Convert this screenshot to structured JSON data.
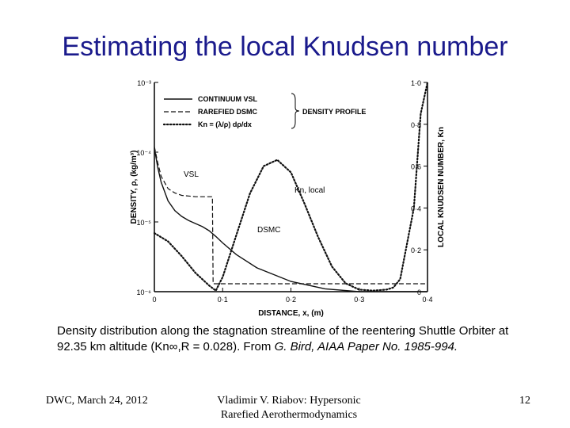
{
  "slide": {
    "title": "Estimating the local Knudsen number",
    "caption_main": "Density distribution along the stagnation streamline of the reentering Shuttle Orbiter at 92.35 km altitude (Kn∞,R = 0.028). From ",
    "caption_source": "G. Bird, AIAA Paper No. 1985-994.",
    "footer_left": "DWC, March 24, 2012",
    "footer_center_line1": "Vladimir V. Riabov: Hypersonic",
    "footer_center_line2": "Rarefied Aerothermodynamics",
    "page_number": "12"
  },
  "chart_data": {
    "type": "line",
    "xlabel": "DISTANCE,  x,  (m)",
    "ylabel_left": "DENSITY,  ρ,  (kg/m³)",
    "ylabel_right": "LOCAL  KNUDSEN  NUMBER,  Kn",
    "x_ticks": [
      "0",
      "0·1",
      "0·2",
      "0·3",
      "0·4"
    ],
    "x_tick_values": [
      0,
      0.1,
      0.2,
      0.3,
      0.4
    ],
    "xlim": [
      0,
      0.4
    ],
    "y_left_scale": "log",
    "y_left_ticks": [
      "10⁻³",
      "10⁻⁴",
      "10⁻⁵",
      "10⁻⁶"
    ],
    "y_left_tick_values": [
      0.001,
      0.0001,
      1e-05,
      1e-06
    ],
    "y_left_lim": [
      1e-06,
      0.001
    ],
    "y_right_ticks": [
      "0",
      "0·2",
      "0·4",
      "0·6",
      "0·8",
      "1·0"
    ],
    "y_right_tick_values": [
      0,
      0.2,
      0.4,
      0.6,
      0.8,
      1.0
    ],
    "y_right_lim": [
      0,
      1.0
    ],
    "legend": {
      "placement": "top-left",
      "entries": [
        "CONTINUUM  VSL",
        "RAREFIED  DSMC",
        "Kn = (λ/ρ) dρ/dx"
      ],
      "group_label": "DENSITY  PROFILE"
    },
    "annotations": [
      "VSL",
      "Kn, local",
      "DSMC"
    ],
    "series": [
      {
        "name": "CONTINUUM  VSL",
        "axis": "left",
        "style": "solid",
        "x": [
          0,
          0.005,
          0.01,
          0.02,
          0.03,
          0.04,
          0.05,
          0.06,
          0.07,
          0.08,
          0.09,
          0.1,
          0.12,
          0.15,
          0.2,
          0.25,
          0.3,
          0.35,
          0.4
        ],
        "y": [
          0.000115,
          6e-05,
          3.7e-05,
          2e-05,
          1.45e-05,
          1.2e-05,
          1.05e-05,
          9.5e-06,
          8.6e-06,
          7.5e-06,
          6.2e-06,
          5e-06,
          3.4e-06,
          2.2e-06,
          1.4e-06,
          1.1e-06,
          1e-06,
          1e-06,
          1e-06
        ]
      },
      {
        "name": "RAREFIED  DSMC",
        "axis": "left",
        "style": "dashed",
        "x": [
          0,
          0.005,
          0.01,
          0.02,
          0.03,
          0.04,
          0.05,
          0.06,
          0.07,
          0.08,
          0.085,
          0.086,
          0.1,
          0.2,
          0.3,
          0.35,
          0.4
        ],
        "y": [
          0.00012,
          7e-05,
          4.5e-05,
          3e-05,
          2.6e-05,
          2.4e-05,
          2.35e-05,
          2.3e-05,
          2.3e-05,
          2.3e-05,
          2.3e-05,
          1.3e-06,
          1.3e-06,
          1.3e-06,
          1.3e-06,
          1.3e-06,
          1.3e-06
        ]
      },
      {
        "name": "Kn = (λ/ρ) dρ/dx",
        "axis": "right",
        "style": "dotted",
        "x": [
          0,
          0.02,
          0.04,
          0.06,
          0.08,
          0.09,
          0.1,
          0.12,
          0.14,
          0.16,
          0.18,
          0.2,
          0.22,
          0.24,
          0.26,
          0.28,
          0.3,
          0.32,
          0.34,
          0.35,
          0.36,
          0.38,
          0.39,
          0.4
        ],
        "y": [
          0.28,
          0.24,
          0.17,
          0.09,
          0.03,
          0.005,
          0.07,
          0.27,
          0.47,
          0.6,
          0.63,
          0.57,
          0.42,
          0.26,
          0.12,
          0.04,
          0.01,
          0.005,
          0.01,
          0.02,
          0.06,
          0.4,
          0.85,
          1.0
        ]
      }
    ]
  }
}
